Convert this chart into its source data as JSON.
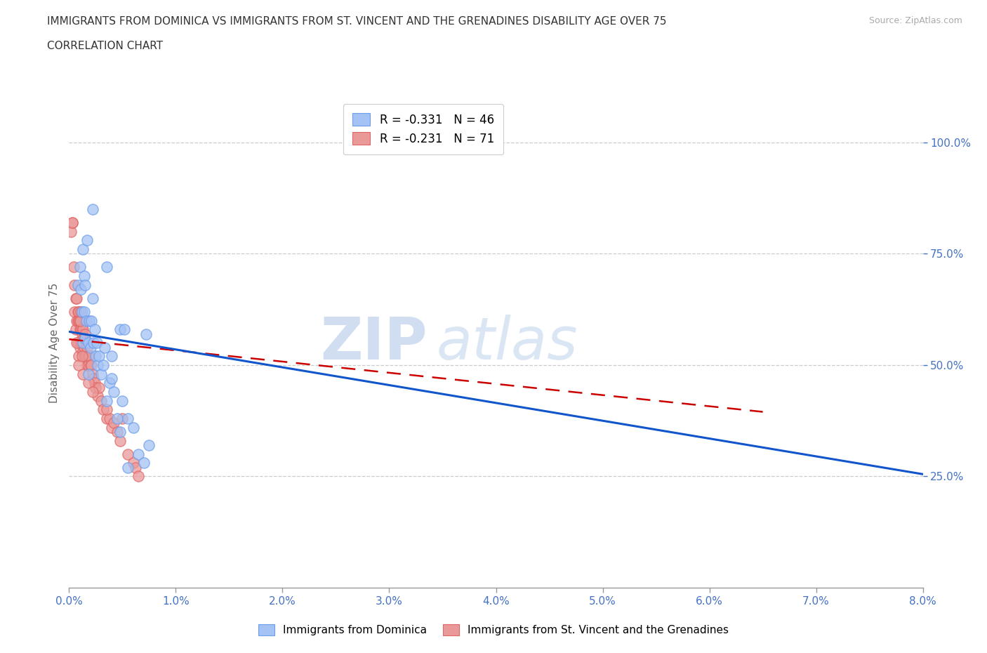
{
  "title_line1": "IMMIGRANTS FROM DOMINICA VS IMMIGRANTS FROM ST. VINCENT AND THE GRENADINES DISABILITY AGE OVER 75",
  "title_line2": "CORRELATION CHART",
  "source_text": "Source: ZipAtlas.com",
  "ylabel": "Disability Age Over 75",
  "xlim": [
    0.0,
    0.08
  ],
  "ylim": [
    0.0,
    1.1
  ],
  "xtick_labels": [
    "0.0%",
    "1.0%",
    "2.0%",
    "3.0%",
    "4.0%",
    "5.0%",
    "6.0%",
    "7.0%",
    "8.0%"
  ],
  "xtick_vals": [
    0.0,
    0.01,
    0.02,
    0.03,
    0.04,
    0.05,
    0.06,
    0.07,
    0.08
  ],
  "ytick_labels": [
    "25.0%",
    "50.0%",
    "75.0%",
    "100.0%"
  ],
  "ytick_vals": [
    0.25,
    0.5,
    0.75,
    1.0
  ],
  "blue_color": "#a4c2f4",
  "pink_color": "#ea9999",
  "blue_edge_color": "#6d9eeb",
  "pink_edge_color": "#e06666",
  "blue_line_color": "#1155cc",
  "pink_line_color": "#cc0000",
  "legend_R_blue": "R = -0.331",
  "legend_N_blue": "N = 46",
  "legend_R_pink": "R = -0.231",
  "legend_N_pink": "N = 71",
  "legend_label_blue": "Immigrants from Dominica",
  "legend_label_pink": "Immigrants from St. Vincent and the Grenadines",
  "watermark_zip": "ZIP",
  "watermark_atlas": "atlas",
  "blue_trend_x0": 0.0,
  "blue_trend_y0": 0.575,
  "blue_trend_x1": 0.08,
  "blue_trend_y1": 0.255,
  "pink_trend_x0": 0.0,
  "pink_trend_y0": 0.558,
  "pink_trend_x1": 0.065,
  "pink_trend_y1": 0.395,
  "blue_scatter_x": [
    0.0008,
    0.001,
    0.0011,
    0.0012,
    0.0013,
    0.0013,
    0.0014,
    0.0014,
    0.0015,
    0.0015,
    0.0016,
    0.0017,
    0.0018,
    0.0019,
    0.002,
    0.0021,
    0.0022,
    0.0023,
    0.0024,
    0.0025,
    0.0026,
    0.0027,
    0.0028,
    0.003,
    0.0032,
    0.0033,
    0.0035,
    0.0038,
    0.004,
    0.0042,
    0.0045,
    0.0048,
    0.005,
    0.0055,
    0.006,
    0.0065,
    0.007,
    0.0075,
    0.0048,
    0.0052,
    0.0035,
    0.0022,
    0.0018,
    0.004,
    0.0055,
    0.0072
  ],
  "blue_scatter_y": [
    0.68,
    0.72,
    0.67,
    0.62,
    0.76,
    0.55,
    0.7,
    0.62,
    0.56,
    0.68,
    0.6,
    0.78,
    0.55,
    0.6,
    0.54,
    0.6,
    0.65,
    0.55,
    0.58,
    0.52,
    0.55,
    0.5,
    0.52,
    0.48,
    0.5,
    0.54,
    0.42,
    0.46,
    0.52,
    0.44,
    0.38,
    0.35,
    0.42,
    0.38,
    0.36,
    0.3,
    0.28,
    0.32,
    0.58,
    0.58,
    0.72,
    0.85,
    0.48,
    0.47,
    0.27,
    0.57
  ],
  "pink_scatter_x": [
    0.0002,
    0.0003,
    0.0004,
    0.0005,
    0.0005,
    0.0006,
    0.0006,
    0.0007,
    0.0007,
    0.0008,
    0.0008,
    0.0008,
    0.0009,
    0.0009,
    0.0009,
    0.001,
    0.001,
    0.001,
    0.0011,
    0.0011,
    0.0011,
    0.0012,
    0.0012,
    0.0012,
    0.0013,
    0.0013,
    0.0013,
    0.0014,
    0.0014,
    0.0014,
    0.0015,
    0.0015,
    0.0015,
    0.0016,
    0.0016,
    0.0017,
    0.0017,
    0.0018,
    0.0018,
    0.0019,
    0.002,
    0.0021,
    0.0022,
    0.0023,
    0.0024,
    0.0025,
    0.0027,
    0.0028,
    0.003,
    0.0032,
    0.0035,
    0.0038,
    0.004,
    0.0042,
    0.0045,
    0.0048,
    0.005,
    0.0055,
    0.006,
    0.0062,
    0.0065,
    0.0003,
    0.0007,
    0.0009,
    0.001,
    0.0011,
    0.0012,
    0.0013,
    0.0018,
    0.0035,
    0.0022
  ],
  "pink_scatter_y": [
    0.8,
    0.82,
    0.72,
    0.68,
    0.62,
    0.65,
    0.58,
    0.65,
    0.6,
    0.62,
    0.6,
    0.55,
    0.62,
    0.6,
    0.52,
    0.6,
    0.58,
    0.54,
    0.6,
    0.58,
    0.55,
    0.58,
    0.57,
    0.55,
    0.58,
    0.56,
    0.53,
    0.56,
    0.54,
    0.52,
    0.57,
    0.55,
    0.52,
    0.55,
    0.52,
    0.54,
    0.5,
    0.52,
    0.5,
    0.52,
    0.5,
    0.5,
    0.48,
    0.47,
    0.46,
    0.45,
    0.43,
    0.45,
    0.42,
    0.4,
    0.38,
    0.38,
    0.36,
    0.37,
    0.35,
    0.33,
    0.38,
    0.3,
    0.28,
    0.27,
    0.25,
    0.82,
    0.55,
    0.5,
    0.6,
    0.62,
    0.52,
    0.48,
    0.46,
    0.4,
    0.44
  ]
}
